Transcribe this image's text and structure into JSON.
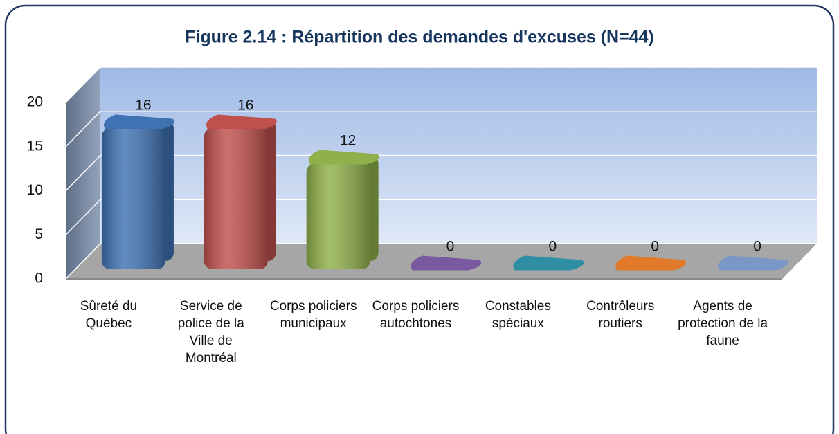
{
  "chart_data": {
    "type": "bar3d",
    "title": "Figure 2.14 : Répartition des demandes d'excuses (N=44)",
    "categories": [
      "Sûreté du Québec",
      "Service de police de la Ville de Montréal",
      "Corps policiers municipaux",
      "Corps policiers autochtones",
      "Constables spéciaux",
      "Contrôleurs routiers",
      "Agents de protection de la faune"
    ],
    "values": [
      16,
      16,
      12,
      0,
      0,
      0,
      0
    ],
    "colors": [
      "#3f72b3",
      "#c0504d",
      "#8fb04a",
      "#7a5a9e",
      "#2f8ea3",
      "#e07a2a",
      "#7b97c6"
    ],
    "ylim": [
      0,
      20
    ],
    "yticks": [
      0,
      5,
      10,
      15,
      20
    ],
    "grid": true
  }
}
